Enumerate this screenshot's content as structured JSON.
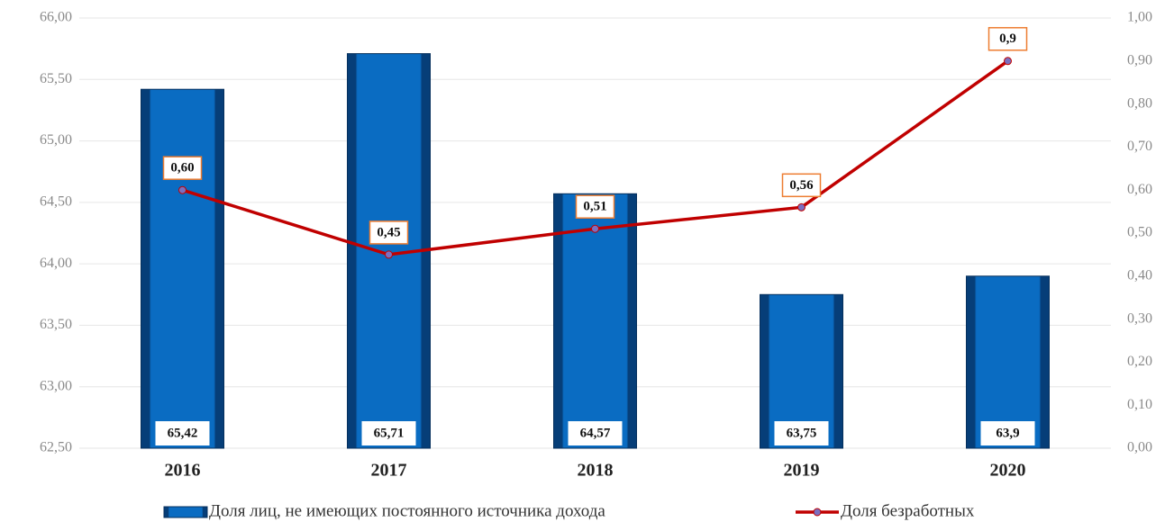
{
  "chart_data": {
    "type": "bar_line",
    "categories": [
      "2016",
      "2017",
      "2018",
      "2019",
      "2020"
    ],
    "series": [
      {
        "name": "Доля лиц, не имеющих постоянного источника дохода",
        "type": "bar",
        "color": "#0a6cc2",
        "values": [
          65.42,
          65.71,
          64.57,
          63.75,
          63.9
        ],
        "value_labels": [
          "65,42",
          "65,71",
          "64,57",
          "63,75",
          "63,9"
        ]
      },
      {
        "name": "Доля безработных",
        "type": "line",
        "axis": "y2",
        "color": "#c00000",
        "values": [
          0.6,
          0.45,
          0.51,
          0.56,
          0.9
        ],
        "value_labels": [
          "0,60",
          "0,45",
          "0,51",
          "0,56",
          "0,9"
        ]
      }
    ],
    "ylim": [
      62.5,
      66
    ],
    "yticks": [
      {
        "value": 62.5,
        "label": "62,50"
      },
      {
        "value": 63,
        "label": "63,00"
      },
      {
        "value": 63.5,
        "label": "63,50"
      },
      {
        "value": 64,
        "label": "64,00"
      },
      {
        "value": 64.5,
        "label": "64,50"
      },
      {
        "value": 65,
        "label": "65,00"
      },
      {
        "value": 65.5,
        "label": "65,50"
      },
      {
        "value": 66,
        "label": "66,00"
      }
    ],
    "y2lim": [
      0,
      1
    ],
    "y2ticks": [
      {
        "value": 0,
        "label": "0,00"
      },
      {
        "value": 0.1,
        "label": "0,10"
      },
      {
        "value": 0.2,
        "label": "0,20"
      },
      {
        "value": 0.3,
        "label": "0,30"
      },
      {
        "value": 0.4,
        "label": "0,40"
      },
      {
        "value": 0.5,
        "label": "0,50"
      },
      {
        "value": 0.6,
        "label": "0,60"
      },
      {
        "value": 0.7,
        "label": "0,70"
      },
      {
        "value": 0.8,
        "label": "0,80"
      },
      {
        "value": 0.9,
        "label": "0,90"
      },
      {
        "value": 1,
        "label": "1,00"
      }
    ],
    "grid": true,
    "legend": "bottom"
  }
}
